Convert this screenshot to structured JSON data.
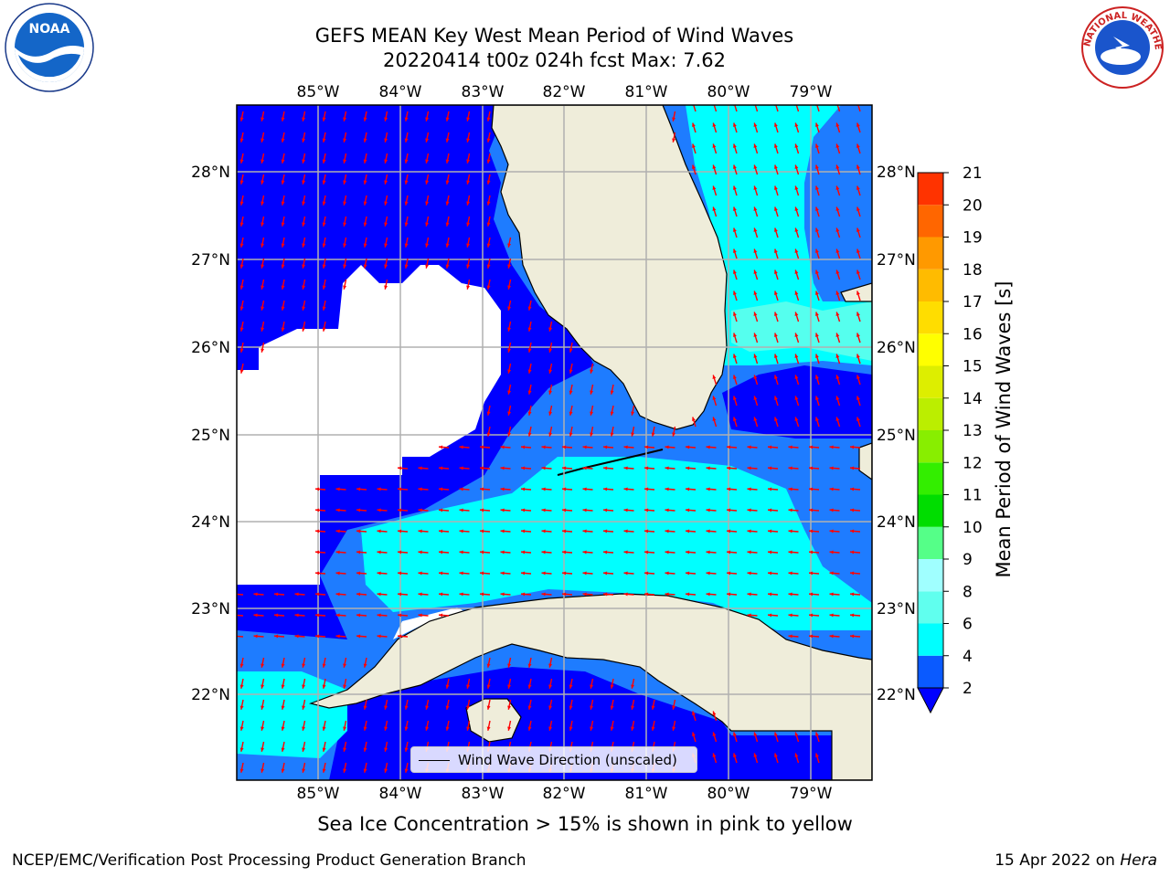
{
  "header": {
    "title_line1": "GEFS MEAN Key West Mean Period of Wind Waves",
    "title_line2": "20220414 t00z 024h fcst   Max: 7.62"
  },
  "logos": {
    "left": "noaa-logo",
    "left_text": "NOAA",
    "right": "nws-logo",
    "right_text": "NATIONAL WEATHER SERVICE"
  },
  "map": {
    "lon_labels": [
      "85°W",
      "84°W",
      "83°W",
      "82°W",
      "81°W",
      "80°W",
      "79°W"
    ],
    "lat_labels": [
      "28°N",
      "27°N",
      "26°N",
      "25°N",
      "24°N",
      "23°N",
      "22°N"
    ],
    "colors": {
      "land": "#efedda",
      "no_data": "#ffffff",
      "band_2_4": "#0000ff",
      "band_4_6": "#1e7cff",
      "band_6_8": "#00ffff",
      "band_8_9": "#55ffee",
      "arrows": "#ff0000",
      "grid": "#b0b0b0"
    }
  },
  "legend": {
    "label": "Wind Wave Direction (unscaled)"
  },
  "colorbar": {
    "title": "Mean Period of Wind Waves [s]",
    "ticks": [
      "2",
      "4",
      "6",
      "8",
      "9",
      "10",
      "11",
      "12",
      "13",
      "14",
      "15",
      "16",
      "17",
      "18",
      "19",
      "20",
      "21"
    ],
    "colors": [
      "#0a5aff",
      "#00ffff",
      "#60ffee",
      "#a0ffff",
      "#55ff88",
      "#00dd00",
      "#33ee00",
      "#88ee00",
      "#bbee00",
      "#ddee00",
      "#ffff00",
      "#ffdd00",
      "#ffbb00",
      "#ff9900",
      "#ff6600",
      "#ff3300",
      "#ff0000"
    ],
    "under_color": "#0000ff"
  },
  "note": "Sea Ice Concentration > 15% is shown in pink to yellow",
  "footer": {
    "left": "NCEP/EMC/Verification Post Processing Product Generation Branch",
    "right_date": "15 Apr 2022 on",
    "right_host": "Hera"
  }
}
